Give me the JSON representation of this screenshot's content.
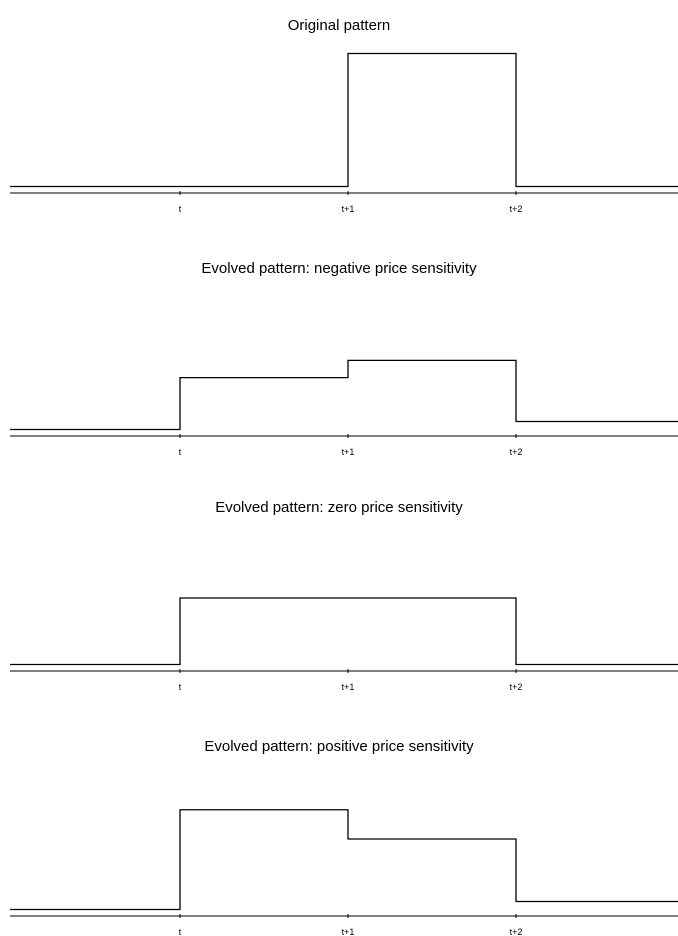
{
  "chart_data": [
    {
      "type": "line",
      "title": "Original pattern",
      "x_ticks": [
        "t",
        "t+1",
        "t+2"
      ],
      "segments": [
        {
          "from": "start",
          "to": "t",
          "level": 0
        },
        {
          "from": "t",
          "to": "t+1",
          "level": 0
        },
        {
          "from": "t+1",
          "to": "t+2",
          "level": 1.0
        },
        {
          "from": "t+2",
          "to": "end",
          "level": 0
        }
      ],
      "ylim": [
        0,
        1.05
      ]
    },
    {
      "type": "line",
      "title": "Evolved pattern: negative price sensitivity",
      "x_ticks": [
        "t",
        "t+1",
        "t+2"
      ],
      "segments": [
        {
          "from": "start",
          "to": "t",
          "level": 0
        },
        {
          "from": "t",
          "to": "t+1",
          "level": 0.39
        },
        {
          "from": "t+1",
          "to": "t+2",
          "level": 0.52
        },
        {
          "from": "t+2",
          "to": "end",
          "level": 0.06
        }
      ],
      "ylim": [
        0,
        1.05
      ]
    },
    {
      "type": "line",
      "title": "Evolved pattern: zero price sensitivity",
      "x_ticks": [
        "t",
        "t+1",
        "t+2"
      ],
      "segments": [
        {
          "from": "start",
          "to": "t",
          "level": 0
        },
        {
          "from": "t",
          "to": "t+1",
          "level": 0.5
        },
        {
          "from": "t+1",
          "to": "t+2",
          "level": 0.5
        },
        {
          "from": "t+2",
          "to": "end",
          "level": 0
        }
      ],
      "ylim": [
        0,
        1.05
      ]
    },
    {
      "type": "line",
      "title": "Evolved pattern: positive price sensitivity",
      "x_ticks": [
        "t",
        "t+1",
        "t+2"
      ],
      "segments": [
        {
          "from": "start",
          "to": "t",
          "level": 0
        },
        {
          "from": "t",
          "to": "t+1",
          "level": 0.75
        },
        {
          "from": "t+1",
          "to": "t+2",
          "level": 0.53
        },
        {
          "from": "t+2",
          "to": "end",
          "level": 0.06
        }
      ],
      "ylim": [
        0,
        1.05
      ]
    }
  ]
}
